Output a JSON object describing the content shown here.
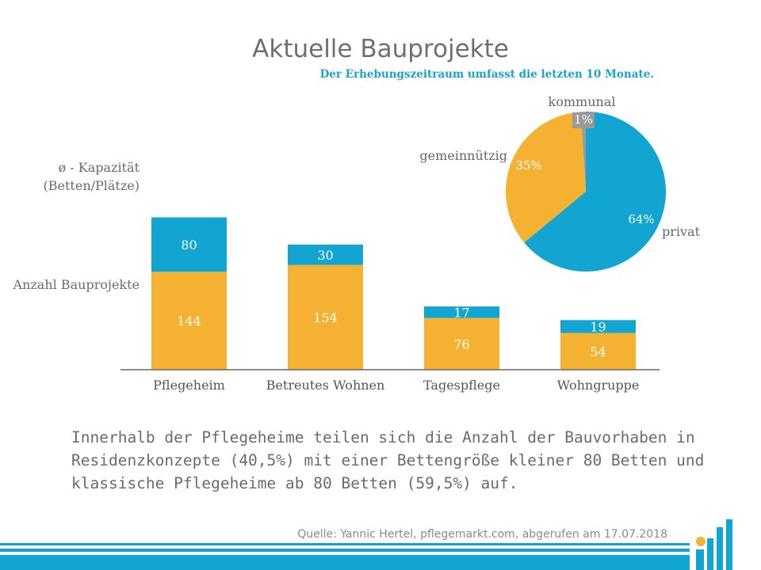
{
  "title": "Aktuelle Bauprojekte",
  "subtitle": "Der Erhebungszeitraum umfasst die letzten 10 Monate.",
  "row_labels": {
    "capacity": "ø - Kapazität (Betten/Plätze)",
    "count": "Anzahl Bauprojekte"
  },
  "chart_data": [
    {
      "type": "bar",
      "stacked": true,
      "categories": [
        "Pflegeheim",
        "Betreutes Wohnen",
        "Tagespflege",
        "Wohngruppe"
      ],
      "series": [
        {
          "name": "Anzahl Bauprojekte",
          "values": [
            144,
            154,
            76,
            54
          ],
          "color": "#f5b132"
        },
        {
          "name": "ø - Kapazität (Betten/Plätze)",
          "values": [
            80,
            30,
            17,
            19
          ],
          "color": "#12a5d2"
        }
      ]
    },
    {
      "type": "pie",
      "slices": [
        {
          "label": "privat",
          "percent_label": "64%",
          "value": 64,
          "color": "#12a5d2"
        },
        {
          "label": "gemeinnützig",
          "percent_label": "35%",
          "value": 35,
          "color": "#f5b132"
        },
        {
          "label": "kommunal",
          "percent_label": "1%",
          "value": 1,
          "color": "#9a9a9a"
        }
      ]
    }
  ],
  "description": "Innerhalb der Pflegeheime teilen sich die Anzahl der Bauvorhaben in Residenzkonzepte (40,5%) mit einer Bettengröße kleiner 80 Betten und klassische Pflegeheime ab 80 Betten (59,5%) auf.",
  "source": "Quelle: Yannic Hertel, pflegemarkt.com, abgerufen am 17.07.2018",
  "colors": {
    "accent": "#12a5d2",
    "orange": "#f5b132",
    "logo_dot": "#f5b132"
  }
}
